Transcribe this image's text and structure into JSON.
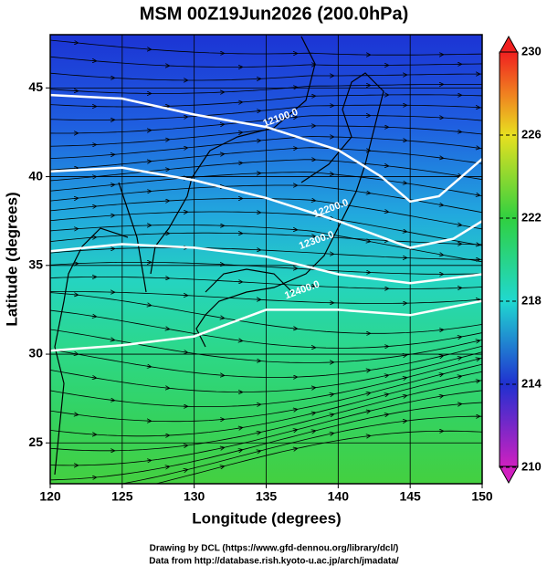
{
  "chart_data": {
    "type": "map",
    "title": "MSM 00Z19Jun2026 (200.0hPa)",
    "xlabel": "Longitude (degrees)",
    "ylabel": "Latitude  (degrees)",
    "xlim": [
      120,
      150
    ],
    "ylim": [
      22.7,
      48.0
    ],
    "xticks": [
      120,
      125,
      130,
      135,
      140,
      145,
      150
    ],
    "yticks": [
      25,
      30,
      35,
      40,
      45
    ],
    "grid": true,
    "colorbar": {
      "lim": [
        210,
        230
      ],
      "ticks": [
        210,
        214,
        218,
        222,
        226,
        230
      ]
    },
    "contours": [
      {
        "value": 12100,
        "label": "12100.0"
      },
      {
        "value": 12200,
        "label": "12200.0"
      },
      {
        "value": 12300,
        "label": "12300.0"
      },
      {
        "value": 12400,
        "label": "12400.0"
      }
    ],
    "credits": [
      "Drawing by DCL (https://www.gfd-dennou.org/library/dcl/)",
      "Data from http://database.rish.kyoto-u.ac.jp/arch/jmadata/"
    ]
  }
}
